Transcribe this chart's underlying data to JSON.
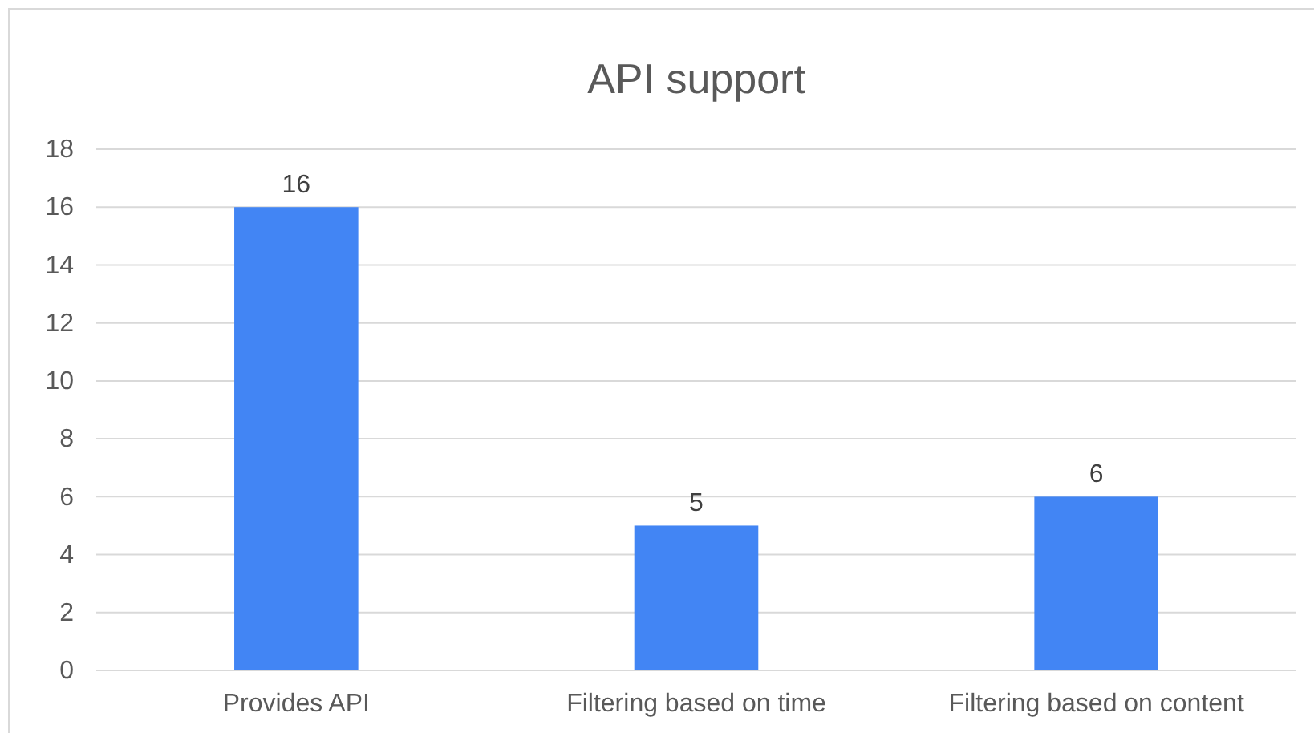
{
  "chart_data": {
    "type": "bar",
    "title": "API support",
    "categories": [
      "Provides API",
      "Filtering based on time",
      "Filtering based on content"
    ],
    "values": [
      16,
      5,
      6
    ],
    "color": "#4285f4",
    "ylim": [
      0,
      18
    ],
    "yticks": [
      0,
      2,
      4,
      6,
      8,
      10,
      12,
      14,
      16,
      18
    ],
    "grid": "y",
    "data_labels": true
  }
}
